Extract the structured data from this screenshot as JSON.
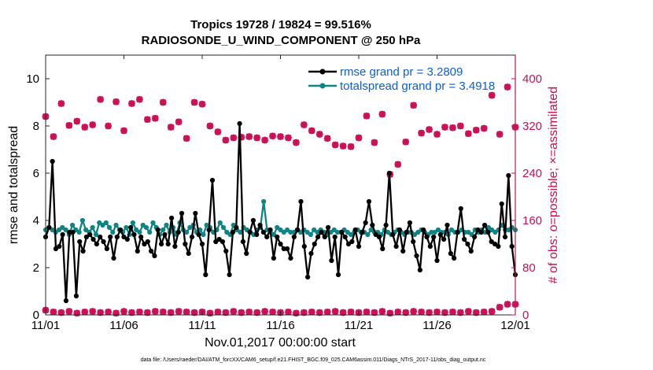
{
  "chart_data": {
    "type": "line",
    "title": "Tropics 19728 / 19824 = 99.516%",
    "subtitle": "RADIOSONDE_U_WIND_COMPONENT @ 250 hPa",
    "xlabel": "Nov.01,2017 00:00:00 start",
    "ylabel": "rmse and totalspread",
    "ylabel_right": "# of obs: o=possible; ×=assimilated",
    "footer": "data file: /Users/raeder/DAI/ATM_forcXX/CAM6_setup/f.e21.FHIST_BGC.f09_025.CAM6assim.011/Diags_NTrS_2017-11/obs_diag_output.nc",
    "x_ticks": [
      "11/01",
      "11/06",
      "11/11",
      "11/16",
      "11/21",
      "11/26",
      "12/01"
    ],
    "x_tick_days": [
      0,
      5,
      10,
      15,
      20,
      25,
      30
    ],
    "xlim": [
      0,
      30
    ],
    "ylim": [
      0,
      11
    ],
    "y_ticks": [
      "0",
      "2",
      "4",
      "6",
      "8",
      "10"
    ],
    "y_tick_values": [
      0,
      2,
      4,
      6,
      8,
      10
    ],
    "ylim_right": [
      0,
      440
    ],
    "y_ticks_right": [
      "0",
      "80",
      "160",
      "240",
      "320",
      "400"
    ],
    "y_tick_values_right": [
      0,
      80,
      160,
      240,
      320,
      400
    ],
    "legend_location": "top-right",
    "colors": {
      "rmse": "#000000",
      "spread": "#0e8585",
      "obs": "#cc0e55",
      "legend_text": "#0b5ed7"
    },
    "series": [
      {
        "name": "rmse grand pr = 3.2809",
        "axis": "left",
        "values": [
          3.3,
          3.7,
          6.5,
          2.8,
          2.9,
          3.4,
          0.6,
          3.5,
          3.5,
          0.8,
          3.1,
          2.7,
          3.3,
          3.4,
          3.2,
          3.0,
          3.3,
          3.1,
          2.8,
          3.3,
          2.4,
          3.3,
          3.6,
          3.3,
          3.2,
          3.7,
          3.4,
          2.7,
          3.3,
          3.0,
          3.1,
          2.7,
          2.5,
          3.6,
          3.0,
          3.4,
          3.0,
          4.1,
          2.9,
          3.5,
          4.3,
          3.0,
          2.6,
          3.3,
          4.3,
          3.4,
          3.0,
          1.7,
          3.6,
          5.7,
          3.1,
          3.2,
          3.1,
          2.7,
          1.7,
          3.5,
          3.7,
          8.1,
          3.1,
          2.6,
          3.5,
          4.0,
          3.4,
          3.8,
          3.5,
          3.3,
          3.6,
          2.4,
          3.3,
          3.0,
          2.8,
          2.8,
          2.4,
          3.3,
          3.6,
          4.8,
          2.9,
          1.6,
          2.6,
          3.0,
          3.3,
          3.5,
          3.3,
          3.7,
          2.3,
          3.3,
          1.7,
          3.5,
          3.3,
          3.0,
          3.1,
          3.6,
          2.9,
          3.5,
          3.9,
          4.8,
          3.8,
          3.4,
          3.3,
          2.8,
          3.8,
          6.0,
          3.4,
          2.9,
          3.6,
          2.7,
          3.5,
          3.9,
          3.1,
          2.5,
          1.9,
          3.6,
          3.3,
          2.9,
          3.3,
          2.3,
          3.4,
          3.2,
          3.8,
          2.6,
          2.4,
          3.5,
          4.5,
          3.2,
          3.0,
          2.7,
          3.3,
          3.6,
          3.5,
          3.8,
          3.5,
          3.1,
          3.0,
          2.9,
          4.7,
          3.3,
          5.9,
          2.9,
          1.7
        ],
        "marker": "o"
      },
      {
        "name": "totalspread grand pr = 3.4918",
        "axis": "left",
        "values": [
          3.6,
          3.7,
          3.6,
          3.5,
          3.6,
          3.7,
          3.6,
          3.4,
          3.8,
          3.6,
          3.5,
          4.0,
          3.6,
          3.5,
          3.7,
          3.4,
          3.9,
          3.8,
          3.9,
          3.7,
          3.5,
          3.8,
          3.6,
          3.5,
          3.7,
          3.4,
          3.9,
          3.6,
          3.5,
          3.8,
          3.7,
          3.5,
          3.9,
          3.7,
          3.4,
          3.6,
          3.8,
          3.5,
          3.7,
          3.4,
          3.9,
          3.6,
          3.5,
          3.7,
          3.8,
          3.5,
          3.6,
          3.4,
          3.8,
          3.7,
          3.5,
          3.6,
          3.9,
          3.7,
          3.5,
          3.4,
          3.8,
          3.6,
          3.5,
          3.7,
          3.6,
          3.5,
          3.4,
          3.6,
          3.7,
          4.8,
          3.6,
          3.5,
          3.4,
          3.7,
          3.6,
          3.5,
          3.6,
          3.5,
          3.5,
          3.6,
          3.5,
          3.6,
          3.5,
          3.4,
          3.6,
          3.5,
          3.6,
          3.5,
          3.4,
          3.5,
          3.6,
          3.5,
          3.5,
          3.6,
          3.5,
          3.4,
          3.5,
          3.6,
          3.5,
          3.5,
          3.4,
          3.6,
          3.5,
          3.5,
          3.4,
          3.6,
          3.5,
          3.4,
          3.5,
          3.6,
          3.5,
          3.4,
          3.5,
          3.5,
          3.4,
          3.5,
          3.6,
          3.5,
          3.4,
          3.5,
          3.5,
          3.6,
          3.5,
          3.5,
          3.4,
          3.6,
          3.5,
          3.5,
          3.6,
          3.5,
          3.5,
          3.4,
          3.6,
          3.5,
          3.6,
          3.5,
          3.7,
          3.6,
          3.5,
          3.6,
          3.8,
          3.6,
          3.6,
          3.7,
          3.6
        ],
        "marker": "o"
      }
    ],
    "obs_upper": {
      "name": "# obs (upper group)",
      "axis": "right",
      "x_days": [
        0,
        0.5,
        1,
        1.5,
        2,
        2.5,
        3,
        3.5,
        4,
        4.5,
        5,
        5.5,
        6,
        6.5,
        7,
        7.5,
        8,
        8.5,
        9,
        9.5,
        10,
        10.5,
        11,
        11.5,
        12,
        12.5,
        13,
        13.5,
        14,
        14.5,
        15,
        15.5,
        16,
        16.5,
        17,
        17.5,
        18,
        18.5,
        19,
        19.5,
        20,
        20.5,
        21,
        21.5,
        22,
        22.5,
        23,
        23.5,
        24,
        24.5,
        25,
        25.5,
        26,
        26.5,
        27,
        27.5,
        28,
        28.5,
        29,
        29.5,
        30
      ],
      "values": [
        336,
        302,
        358,
        321,
        328,
        318,
        322,
        365,
        320,
        361,
        312,
        358,
        365,
        331,
        333,
        360,
        318,
        327,
        299,
        360,
        357,
        320,
        310,
        296,
        300,
        301,
        302,
        300,
        296,
        303,
        302,
        300,
        292,
        322,
        312,
        306,
        299,
        288,
        286,
        285,
        300,
        337,
        292,
        340,
        238,
        255,
        293,
        355,
        308,
        314,
        306,
        318,
        317,
        320,
        307,
        313,
        316,
        372,
        306,
        386,
        318
      ]
    },
    "obs_lower": {
      "name": "# obs (lower group)",
      "axis": "right",
      "x_days": [
        0,
        0.5,
        1,
        1.5,
        2,
        2.5,
        3,
        3.5,
        4,
        4.5,
        5,
        5.5,
        6,
        6.5,
        7,
        7.5,
        8,
        8.5,
        9,
        9.5,
        10,
        10.5,
        11,
        11.5,
        12,
        12.5,
        13,
        13.5,
        14,
        14.5,
        15,
        15.5,
        16,
        16.5,
        17,
        17.5,
        18,
        18.5,
        19,
        19.5,
        20,
        20.5,
        21,
        21.5,
        22,
        22.5,
        23,
        23.5,
        24,
        24.5,
        25,
        25.5,
        26,
        26.5,
        27,
        27.5,
        28,
        28.5,
        29,
        29.5,
        30
      ],
      "values": [
        8,
        5,
        4,
        6,
        3,
        5,
        6,
        4,
        5,
        3,
        6,
        4,
        5,
        4,
        6,
        5,
        4,
        6,
        5,
        4,
        5,
        3,
        5,
        4,
        6,
        4,
        5,
        4,
        6,
        5,
        4,
        5,
        3,
        4,
        5,
        4,
        5,
        6,
        4,
        5,
        4,
        5,
        4,
        6,
        3,
        5,
        4,
        6,
        5,
        4,
        5,
        4,
        5,
        4,
        6,
        4,
        5,
        6,
        13,
        18,
        18
      ]
    }
  }
}
